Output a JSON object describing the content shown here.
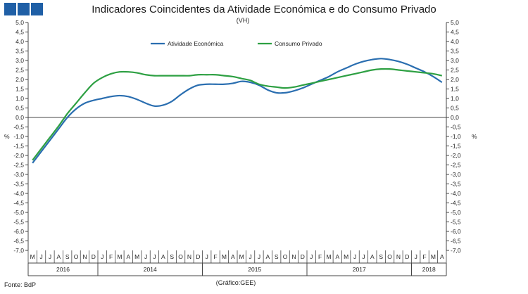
{
  "title": "Indicadores Coincidentes da Atividade Económica e do Consumo Privado",
  "subtitle": "(VH)",
  "source": "Fonte: BdP",
  "credit": "(Gráfico:GEE)",
  "chart_data": {
    "type": "line",
    "title": "Indicadores Coincidentes da Atividade Económica e do Consumo Privado",
    "subtitle": "(VH)",
    "ylabel": "%",
    "ylim": [
      -7.0,
      5.0
    ],
    "ytick_step": 0.5,
    "yticks": [
      "5,0",
      "4,5",
      "4,0",
      "3,5",
      "3,0",
      "2,5",
      "2,0",
      "1,5",
      "1,0",
      "0,5",
      "0,0",
      "-0,5",
      "-1,0",
      "-1,5",
      "-2,0",
      "-2,5",
      "-3,0",
      "-3,5",
      "-4,0",
      "-4,5",
      "-5,0",
      "-5,5",
      "-6,0",
      "-6,5",
      "-7,0"
    ],
    "grid": false,
    "legend": "top-center",
    "months": [
      "M",
      "J",
      "J",
      "A",
      "S",
      "O",
      "N",
      "D",
      "J",
      "F",
      "M",
      "A",
      "M",
      "J",
      "J",
      "A",
      "S",
      "O",
      "N",
      "D",
      "J",
      "F",
      "M",
      "A",
      "M",
      "J",
      "J",
      "A",
      "S",
      "O",
      "N",
      "D",
      "J",
      "F",
      "M",
      "A",
      "M",
      "J",
      "J",
      "A",
      "S",
      "O",
      "N",
      "D",
      "J",
      "F",
      "M",
      "A"
    ],
    "years": [
      {
        "label": "2016",
        "start": 0,
        "end": 8
      },
      {
        "label": "2014",
        "start": 8,
        "end": 20
      },
      {
        "label": "2015",
        "start": 20,
        "end": 32
      },
      {
        "label": "2017",
        "start": 32,
        "end": 44
      },
      {
        "label": "2018",
        "start": 44,
        "end": 48
      }
    ],
    "series": [
      {
        "name": "Atividade Económica",
        "color": "#2a6eb0",
        "values": [
          -2.4,
          -1.8,
          -1.2,
          -0.6,
          0.0,
          0.45,
          0.75,
          0.9,
          1.0,
          1.1,
          1.15,
          1.1,
          0.95,
          0.75,
          0.6,
          0.65,
          0.85,
          1.2,
          1.5,
          1.7,
          1.75,
          1.75,
          1.75,
          1.8,
          1.9,
          1.85,
          1.7,
          1.45,
          1.3,
          1.3,
          1.4,
          1.55,
          1.75,
          1.95,
          2.15,
          2.4,
          2.6,
          2.8,
          2.95,
          3.05,
          3.1,
          3.05,
          2.95,
          2.8,
          2.6,
          2.4,
          2.15,
          1.85
        ]
      },
      {
        "name": "Consumo Privado",
        "color": "#2ea043",
        "values": [
          -2.25,
          -1.65,
          -1.05,
          -0.45,
          0.2,
          0.75,
          1.3,
          1.8,
          2.1,
          2.3,
          2.4,
          2.4,
          2.35,
          2.25,
          2.2,
          2.2,
          2.2,
          2.2,
          2.2,
          2.25,
          2.25,
          2.25,
          2.2,
          2.15,
          2.05,
          1.95,
          1.75,
          1.65,
          1.6,
          1.55,
          1.6,
          1.7,
          1.8,
          1.9,
          2.0,
          2.1,
          2.2,
          2.3,
          2.4,
          2.5,
          2.55,
          2.55,
          2.5,
          2.45,
          2.4,
          2.35,
          2.3,
          2.2
        ]
      }
    ]
  }
}
